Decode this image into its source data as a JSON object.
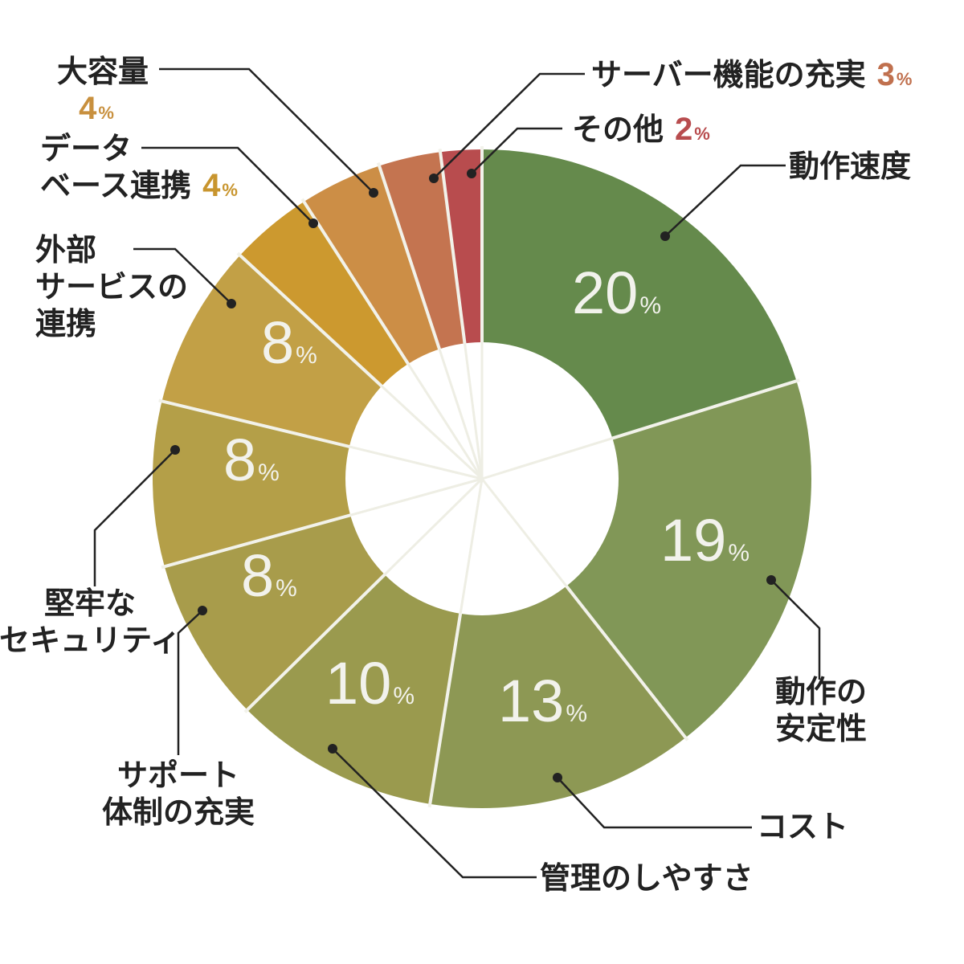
{
  "chart_data": {
    "type": "pie",
    "style": "donut",
    "title": "",
    "unit": "%",
    "slices": [
      {
        "name": "動作速度",
        "value": 20,
        "color": "#658a4c",
        "label_lines": [
          "動作速度"
        ],
        "inner_label": "20"
      },
      {
        "name": "動作の安定性",
        "value": 19,
        "color": "#819757",
        "label_lines": [
          "動作の",
          "安定性"
        ],
        "inner_label": "19"
      },
      {
        "name": "コスト",
        "value": 13,
        "color": "#8d9854",
        "label_lines": [
          "コスト"
        ],
        "inner_label": "13"
      },
      {
        "name": "管理のしやすさ",
        "value": 10,
        "color": "#9a9a4e",
        "label_lines": [
          "管理のしやすさ"
        ],
        "inner_label": "10"
      },
      {
        "name": "サポート体制の充実",
        "value": 8,
        "color": "#a89c4b",
        "label_lines": [
          "サポート",
          "体制の充実"
        ],
        "inner_label": "8"
      },
      {
        "name": "堅牢なセキュリティ",
        "value": 8,
        "color": "#b49f48",
        "label_lines": [
          "堅牢な",
          "セキュリティ"
        ],
        "inner_label": "8"
      },
      {
        "name": "外部サービスの連携",
        "value": 8,
        "color": "#c2a046",
        "label_lines": [
          "外部",
          "サービスの",
          "連携"
        ],
        "inner_label": "8"
      },
      {
        "name": "データベース連携",
        "value": 4,
        "color": "#cc992f",
        "label_lines": [
          "データ",
          "ベース連携"
        ],
        "outer_pct": "4",
        "pct_color": "#c8952e"
      },
      {
        "name": "大容量",
        "value": 4,
        "color": "#cc8e46",
        "label_lines": [
          "大容量"
        ],
        "outer_pct": "4",
        "pct_color": "#c8903e"
      },
      {
        "name": "サーバー機能の充実",
        "value": 3,
        "color": "#c47450",
        "label_lines": [
          "サーバー機能の充実"
        ],
        "outer_pct": "3",
        "pct_color": "#c0704e"
      },
      {
        "name": "その他",
        "value": 2,
        "color": "#b84c4e",
        "label_lines": [
          "その他"
        ],
        "outer_pct": "2",
        "pct_color": "#b84c4e"
      }
    ],
    "separator_color": "#f2f2ea",
    "leader_color": "#222222"
  }
}
